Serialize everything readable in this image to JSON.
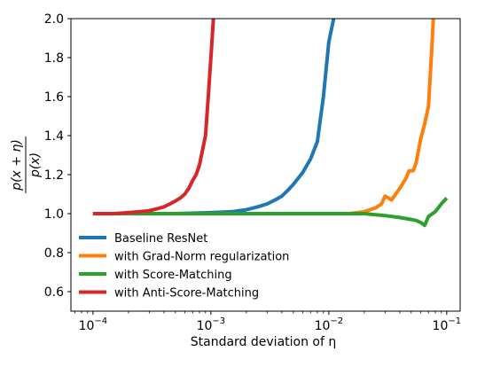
{
  "chart_data": {
    "type": "line",
    "xlabel": "Standard deviation of η",
    "x_scale": "log",
    "xlim": [
      6.5e-05,
      0.13
    ],
    "ylim": [
      0.5,
      2.0
    ],
    "grid": false,
    "legend_position": "lower-left",
    "x_ticks": [
      {
        "value": 0.0001,
        "base": "10",
        "exp": "−4"
      },
      {
        "value": 0.001,
        "base": "10",
        "exp": "−3"
      },
      {
        "value": 0.01,
        "base": "10",
        "exp": "−2"
      },
      {
        "value": 0.1,
        "base": "10",
        "exp": "−1"
      }
    ],
    "y_ticks": [
      {
        "value": 0.6,
        "label": "0.6"
      },
      {
        "value": 0.8,
        "label": "0.8"
      },
      {
        "value": 1.0,
        "label": "1.0"
      },
      {
        "value": 1.2,
        "label": "1.2"
      },
      {
        "value": 1.4,
        "label": "1.4"
      },
      {
        "value": 1.6,
        "label": "1.6"
      },
      {
        "value": 1.8,
        "label": "1.8"
      },
      {
        "value": 2.0,
        "label": "2.0"
      }
    ],
    "ylabel_parts": {
      "numerator": "p(x + η)",
      "denominator": "p(x)"
    },
    "series": [
      {
        "name": "Baseline ResNet",
        "color": "#1f77b4",
        "points": [
          [
            0.0001,
            1.0
          ],
          [
            0.0002,
            1.0
          ],
          [
            0.0005,
            1.0
          ],
          [
            0.001,
            1.005
          ],
          [
            0.0015,
            1.01
          ],
          [
            0.002,
            1.02
          ],
          [
            0.0025,
            1.035
          ],
          [
            0.003,
            1.05
          ],
          [
            0.0035,
            1.07
          ],
          [
            0.004,
            1.09
          ],
          [
            0.0045,
            1.12
          ],
          [
            0.005,
            1.15
          ],
          [
            0.006,
            1.21
          ],
          [
            0.007,
            1.28
          ],
          [
            0.008,
            1.37
          ],
          [
            0.009,
            1.6
          ],
          [
            0.01,
            1.88
          ],
          [
            0.011,
            2.0
          ]
        ]
      },
      {
        "name": "with Grad-Norm regularization",
        "color": "#ff7f0e",
        "points": [
          [
            0.0001,
            1.0
          ],
          [
            0.001,
            1.0
          ],
          [
            0.005,
            1.0
          ],
          [
            0.01,
            1.0
          ],
          [
            0.015,
            1.0
          ],
          [
            0.02,
            1.01
          ],
          [
            0.025,
            1.03
          ],
          [
            0.028,
            1.05
          ],
          [
            0.03,
            1.09
          ],
          [
            0.034,
            1.07
          ],
          [
            0.04,
            1.13
          ],
          [
            0.045,
            1.18
          ],
          [
            0.048,
            1.22
          ],
          [
            0.052,
            1.22
          ],
          [
            0.055,
            1.26
          ],
          [
            0.06,
            1.38
          ],
          [
            0.065,
            1.46
          ],
          [
            0.07,
            1.55
          ],
          [
            0.074,
            1.8
          ],
          [
            0.077,
            2.0
          ]
        ]
      },
      {
        "name": "with Score-Matching",
        "color": "#2ca02c",
        "points": [
          [
            0.0001,
            1.0
          ],
          [
            0.001,
            1.0
          ],
          [
            0.005,
            1.0
          ],
          [
            0.01,
            1.0
          ],
          [
            0.02,
            1.0
          ],
          [
            0.03,
            0.99
          ],
          [
            0.04,
            0.98
          ],
          [
            0.05,
            0.97
          ],
          [
            0.055,
            0.965
          ],
          [
            0.06,
            0.955
          ],
          [
            0.065,
            0.94
          ],
          [
            0.07,
            0.985
          ],
          [
            0.08,
            1.01
          ],
          [
            0.09,
            1.05
          ],
          [
            0.1,
            1.08
          ]
        ]
      },
      {
        "name": "with Anti-Score-Matching",
        "color": "#d62728",
        "points": [
          [
            0.0001,
            1.0
          ],
          [
            0.00015,
            1.0
          ],
          [
            0.0002,
            1.005
          ],
          [
            0.00025,
            1.01
          ],
          [
            0.0003,
            1.015
          ],
          [
            0.00035,
            1.025
          ],
          [
            0.0004,
            1.035
          ],
          [
            0.00045,
            1.05
          ],
          [
            0.0005,
            1.065
          ],
          [
            0.00055,
            1.08
          ],
          [
            0.0006,
            1.1
          ],
          [
            0.00065,
            1.13
          ],
          [
            0.0007,
            1.17
          ],
          [
            0.00075,
            1.2
          ],
          [
            0.0008,
            1.25
          ],
          [
            0.0009,
            1.4
          ],
          [
            0.00095,
            1.6
          ],
          [
            0.001,
            1.8
          ],
          [
            0.00105,
            2.0
          ]
        ]
      }
    ]
  }
}
